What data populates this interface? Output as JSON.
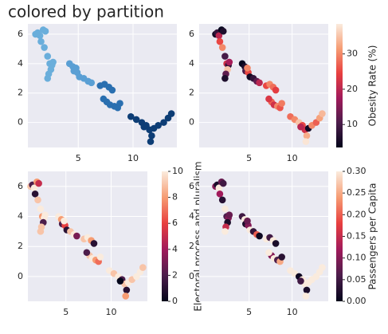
{
  "chart_data": [
    {
      "type": "scatter",
      "title": "colored by partition",
      "x": [
        1.1,
        1.3,
        1.5,
        1.8,
        2.0,
        1.6,
        1.9,
        2.2,
        2.4,
        2.6,
        2.5,
        2.3,
        2.2,
        2.7,
        4.2,
        4.5,
        4.6,
        4.9,
        5.1,
        5.5,
        5.9,
        6.2,
        4.8,
        7.0,
        7.4,
        7.8,
        8.1,
        7.6,
        7.9,
        8.3,
        8.6,
        7.3,
        8.8,
        9.8,
        10.3,
        10.8,
        11.2,
        11.5,
        11.7,
        11.6,
        11.9,
        12.3,
        12.8,
        13.2,
        13.5,
        11.0
      ],
      "values": [
        6.0,
        6.1,
        5.9,
        6.3,
        6.2,
        5.5,
        5.1,
        4.5,
        4.0,
        3.9,
        3.6,
        3.3,
        3.0,
        4.1,
        4.0,
        3.8,
        3.5,
        3.4,
        3.1,
        3.0,
        2.8,
        2.7,
        3.7,
        2.5,
        2.6,
        2.4,
        2.2,
        1.4,
        1.2,
        1.1,
        1.0,
        1.6,
        1.3,
        0.4,
        0.2,
        0.0,
        -0.2,
        -0.5,
        -0.9,
        -1.3,
        -0.4,
        -0.2,
        0.0,
        0.3,
        0.6,
        -0.3
      ],
      "colors": [
        "#6aaedb",
        "#6aaedb",
        "#6aaedb",
        "#6aaedb",
        "#6aaedb",
        "#6aaedb",
        "#6aaedb",
        "#6aaedb",
        "#6aaedb",
        "#6aaedb",
        "#6aaedb",
        "#6aaedb",
        "#6aaedb",
        "#6aaedb",
        "#5a9fd4",
        "#5a9fd4",
        "#5a9fd4",
        "#5a9fd4",
        "#5a9fd4",
        "#5a9fd4",
        "#5a9fd4",
        "#5a9fd4",
        "#5a9fd4",
        "#2a6fb0",
        "#2a6fb0",
        "#2a6fb0",
        "#2a6fb0",
        "#2a6fb0",
        "#2a6fb0",
        "#2a6fb0",
        "#2a6fb0",
        "#2a6fb0",
        "#2a6fb0",
        "#0d3d75",
        "#0d3d75",
        "#0d3d75",
        "#0d3d75",
        "#0d3d75",
        "#0d3d75",
        "#0d3d75",
        "#0d3d75",
        "#0d3d75",
        "#0d3d75",
        "#0d3d75",
        "#0d3d75",
        "#0d3d75"
      ],
      "xlim": [
        0.4,
        14.0
      ],
      "ylim": [
        -1.7,
        6.7
      ],
      "xticks": [
        5,
        10
      ],
      "yticks": [
        0,
        2,
        4,
        6
      ],
      "grid": true
    },
    {
      "type": "scatter",
      "x": [
        1.1,
        1.3,
        1.5,
        1.8,
        2.0,
        1.6,
        1.9,
        2.2,
        2.4,
        2.6,
        2.5,
        2.3,
        2.2,
        2.7,
        4.2,
        4.5,
        4.6,
        4.9,
        5.1,
        5.5,
        5.9,
        6.2,
        4.8,
        7.0,
        7.4,
        7.8,
        8.1,
        7.6,
        7.9,
        8.3,
        8.6,
        7.3,
        8.8,
        9.8,
        10.3,
        10.8,
        11.2,
        11.5,
        11.7,
        11.6,
        11.9,
        12.3,
        12.8,
        13.2,
        13.5,
        11.0
      ],
      "values": [
        6.0,
        6.1,
        5.9,
        6.3,
        6.2,
        5.5,
        5.1,
        4.5,
        4.0,
        3.9,
        3.6,
        3.3,
        3.0,
        4.1,
        4.0,
        3.8,
        3.5,
        3.4,
        3.1,
        3.0,
        2.8,
        2.7,
        3.7,
        2.5,
        2.6,
        2.4,
        2.2,
        1.4,
        1.2,
        1.1,
        1.0,
        1.6,
        1.3,
        0.4,
        0.2,
        0.0,
        -0.2,
        -0.5,
        -0.9,
        -1.3,
        -0.4,
        -0.2,
        0.0,
        0.3,
        0.6,
        -0.3
      ],
      "c": [
        5,
        8,
        20,
        4,
        6,
        25,
        30,
        10,
        22,
        8,
        35,
        12,
        6,
        18,
        4,
        6,
        10,
        25,
        5,
        8,
        12,
        20,
        30,
        25,
        30,
        28,
        24,
        27,
        22,
        30,
        26,
        23,
        29,
        28,
        30,
        35,
        25,
        22,
        33,
        38,
        5,
        30,
        27,
        32,
        34,
        20
      ],
      "colormap": "rocket",
      "clim": [
        3.5,
        38.5
      ],
      "cticks": [
        10,
        20,
        30
      ],
      "clabel": "Obesity Rate (%)",
      "xlim": [
        -0.8,
        14.2
      ],
      "ylim": [
        -1.7,
        6.7
      ],
      "xticks": [
        5,
        10
      ],
      "yticks": [
        0,
        2,
        4,
        6
      ],
      "grid": true
    },
    {
      "type": "scatter",
      "x": [
        1.1,
        1.3,
        1.5,
        1.8,
        2.0,
        1.6,
        1.9,
        2.2,
        2.4,
        2.6,
        2.5,
        2.3,
        2.2,
        2.7,
        4.2,
        4.5,
        4.6,
        4.9,
        5.1,
        5.5,
        5.9,
        6.2,
        4.8,
        7.0,
        7.4,
        7.8,
        8.1,
        7.6,
        7.9,
        8.3,
        8.6,
        7.3,
        8.8,
        9.8,
        10.3,
        10.8,
        11.2,
        11.5,
        11.7,
        11.6,
        11.9,
        12.3,
        12.8,
        13.2,
        13.5,
        11.0
      ],
      "values": [
        6.0,
        6.1,
        5.9,
        6.3,
        6.2,
        5.5,
        5.1,
        4.5,
        4.0,
        3.9,
        3.6,
        3.3,
        3.0,
        4.1,
        4.0,
        3.8,
        3.5,
        3.4,
        3.1,
        3.0,
        2.8,
        2.7,
        3.7,
        2.5,
        2.6,
        2.4,
        2.2,
        1.4,
        1.2,
        1.1,
        1.0,
        1.6,
        1.3,
        0.4,
        0.2,
        0.0,
        -0.2,
        -0.5,
        -0.9,
        -1.3,
        -0.4,
        -0.2,
        0.0,
        0.3,
        0.6,
        -0.3
      ],
      "c": [
        9,
        2,
        10,
        8,
        5,
        1,
        9,
        10,
        8,
        10,
        2,
        9,
        9,
        10,
        10,
        8,
        2,
        6,
        1,
        9,
        10,
        3,
        10,
        9,
        10,
        8,
        1,
        9,
        10,
        8,
        7,
        2,
        10,
        10,
        9,
        10,
        2,
        9,
        1,
        8,
        10,
        9,
        10,
        10,
        9,
        0
      ],
      "colormap": "rocket",
      "clim": [
        0,
        10
      ],
      "cticks": [
        0,
        2,
        4,
        6,
        8,
        10
      ],
      "clabel": "Electoral process and pluralism",
      "xlim": [
        0.8,
        14.0
      ],
      "ylim": [
        -1.65,
        7.0
      ],
      "xticks": [
        5,
        10
      ],
      "yticks": [
        0,
        2,
        4,
        6
      ],
      "grid": true
    },
    {
      "type": "scatter",
      "x": [
        1.1,
        1.3,
        1.5,
        1.8,
        2.0,
        1.6,
        1.9,
        2.2,
        2.4,
        2.6,
        2.5,
        2.3,
        2.2,
        2.7,
        4.2,
        4.5,
        4.6,
        4.9,
        5.1,
        5.5,
        5.9,
        6.2,
        4.8,
        7.0,
        7.4,
        7.8,
        8.1,
        7.6,
        7.9,
        8.3,
        8.6,
        7.3,
        8.8,
        9.8,
        10.3,
        10.8,
        11.2,
        11.5,
        11.7,
        11.6,
        11.9,
        12.3,
        12.8,
        13.2,
        13.5,
        11.0
      ],
      "values": [
        6.0,
        6.1,
        5.9,
        6.3,
        6.2,
        5.5,
        5.1,
        4.5,
        4.0,
        3.9,
        3.6,
        3.3,
        3.0,
        4.1,
        4.0,
        3.8,
        3.5,
        3.4,
        3.1,
        3.0,
        2.8,
        2.7,
        3.7,
        2.5,
        2.6,
        2.4,
        2.2,
        1.4,
        1.2,
        1.1,
        1.0,
        1.6,
        1.3,
        0.4,
        0.2,
        0.0,
        -0.2,
        -0.5,
        -0.9,
        -1.3,
        -0.4,
        -0.2,
        0.0,
        0.3,
        0.6,
        -0.3
      ],
      "c": [
        0.1,
        0.02,
        0.3,
        0.08,
        0.05,
        0.12,
        0.03,
        0.3,
        0.06,
        0.1,
        0.02,
        0.15,
        0.3,
        0.08,
        0.05,
        0.3,
        0.02,
        0.1,
        0.3,
        0.04,
        0.2,
        0.01,
        0.08,
        0.3,
        0.05,
        0.3,
        0.02,
        0.1,
        0.3,
        0.06,
        0.25,
        0.3,
        0.03,
        0.3,
        0.3,
        0.01,
        0.3,
        0.3,
        0.02,
        0.3,
        0.3,
        0.3,
        0.3,
        0.3,
        0.3,
        0.05
      ],
      "colormap": "rocket",
      "clim": [
        0,
        0.3
      ],
      "cticks": [
        {
          "value": 0,
          "label": "0.00"
        },
        {
          "value": 0.05,
          "label": "0.05"
        },
        {
          "value": 0.1,
          "label": "0.10"
        },
        {
          "value": 0.15,
          "label": "0.15"
        },
        {
          "value": 0.2,
          "label": "0.20"
        },
        {
          "value": 0.25,
          "label": "0.25"
        },
        {
          "value": 0.3,
          "label": "0.30"
        }
      ],
      "clabel": "Passengers per Capita",
      "xlim": [
        -0.8,
        14.2
      ],
      "ylim": [
        -1.65,
        7.0
      ],
      "xticks": [
        5,
        10
      ],
      "yticks": [
        0,
        2,
        4,
        6
      ],
      "grid": true
    }
  ]
}
